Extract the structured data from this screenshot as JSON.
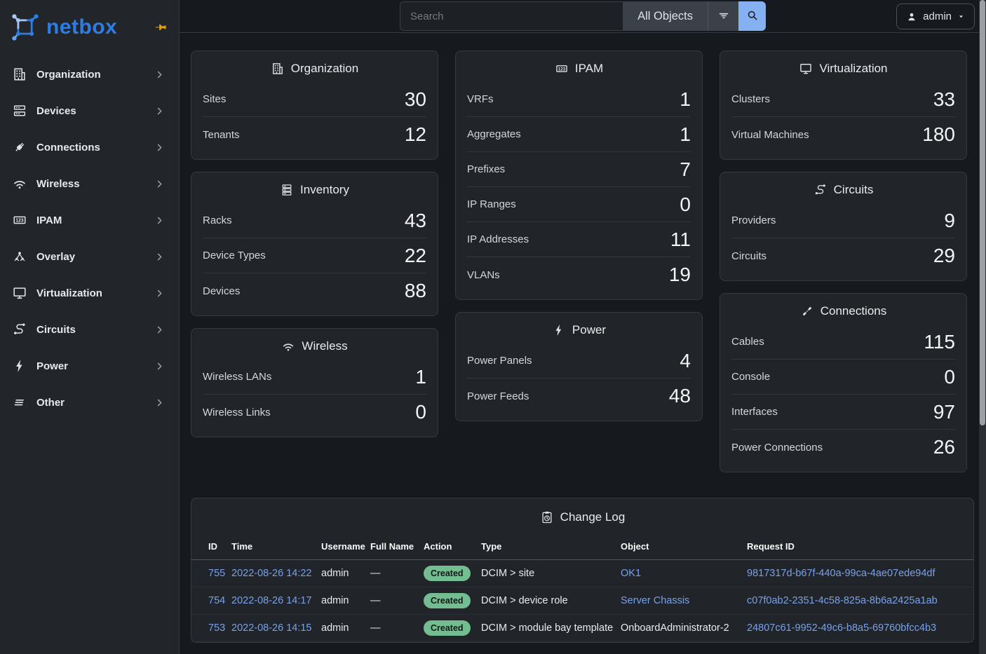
{
  "brand": {
    "name": "netbox"
  },
  "topbar": {
    "search_placeholder": "Search",
    "scope": "All Objects",
    "user_label": "admin"
  },
  "sidebar": {
    "items": [
      {
        "label": "Organization",
        "icon": "building"
      },
      {
        "label": "Devices",
        "icon": "server"
      },
      {
        "label": "Connections",
        "icon": "plug"
      },
      {
        "label": "Wireless",
        "icon": "wifi"
      },
      {
        "label": "IPAM",
        "icon": "counter"
      },
      {
        "label": "Overlay",
        "icon": "graph"
      },
      {
        "label": "Virtualization",
        "icon": "monitor"
      },
      {
        "label": "Circuits",
        "icon": "transit"
      },
      {
        "label": "Power",
        "icon": "bolt"
      },
      {
        "label": "Other",
        "icon": "lines"
      }
    ]
  },
  "stat_cards": [
    {
      "id": "organization",
      "title": "Organization",
      "icon": "building",
      "column": 1,
      "rows": [
        {
          "label": "Sites",
          "value": "30"
        },
        {
          "label": "Tenants",
          "value": "12"
        }
      ]
    },
    {
      "id": "inventory",
      "title": "Inventory",
      "icon": "racks",
      "column": 1,
      "rows": [
        {
          "label": "Racks",
          "value": "43"
        },
        {
          "label": "Device Types",
          "value": "22"
        },
        {
          "label": "Devices",
          "value": "88"
        }
      ]
    },
    {
      "id": "wireless",
      "title": "Wireless",
      "icon": "wifi",
      "column": 1,
      "rows": [
        {
          "label": "Wireless LANs",
          "value": "1"
        },
        {
          "label": "Wireless Links",
          "value": "0"
        }
      ]
    },
    {
      "id": "ipam",
      "title": "IPAM",
      "icon": "counter",
      "column": 2,
      "rows": [
        {
          "label": "VRFs",
          "value": "1"
        },
        {
          "label": "Aggregates",
          "value": "1"
        },
        {
          "label": "Prefixes",
          "value": "7"
        },
        {
          "label": "IP Ranges",
          "value": "0"
        },
        {
          "label": "IP Addresses",
          "value": "11"
        },
        {
          "label": "VLANs",
          "value": "19"
        }
      ]
    },
    {
      "id": "power",
      "title": "Power",
      "icon": "bolt",
      "column": 2,
      "rows": [
        {
          "label": "Power Panels",
          "value": "4"
        },
        {
          "label": "Power Feeds",
          "value": "48"
        }
      ]
    },
    {
      "id": "virtualization",
      "title": "Virtualization",
      "icon": "monitor",
      "column": 3,
      "rows": [
        {
          "label": "Clusters",
          "value": "33"
        },
        {
          "label": "Virtual Machines",
          "value": "180"
        }
      ]
    },
    {
      "id": "circuits",
      "title": "Circuits",
      "icon": "transit",
      "column": 3,
      "rows": [
        {
          "label": "Providers",
          "value": "9"
        },
        {
          "label": "Circuits",
          "value": "29"
        }
      ]
    },
    {
      "id": "connections",
      "title": "Connections",
      "icon": "cable",
      "column": 3,
      "rows": [
        {
          "label": "Cables",
          "value": "115"
        },
        {
          "label": "Console",
          "value": "0"
        },
        {
          "label": "Interfaces",
          "value": "97"
        },
        {
          "label": "Power Connections",
          "value": "26"
        }
      ]
    }
  ],
  "changelog": {
    "title": "Change Log",
    "icon": "clipboard-clock",
    "columns": [
      "ID",
      "Time",
      "Username",
      "Full Name",
      "Action",
      "Type",
      "Object",
      "Request ID"
    ],
    "rows": [
      {
        "id": "755",
        "time": "2022-08-26 14:22",
        "username": "admin",
        "full_name": "—",
        "action": "Created",
        "type": "DCIM > site",
        "object": "OK1",
        "object_link": true,
        "request_id": "9817317d-b67f-440a-99ca-4ae07ede94df"
      },
      {
        "id": "754",
        "time": "2022-08-26 14:17",
        "username": "admin",
        "full_name": "—",
        "action": "Created",
        "type": "DCIM > device role",
        "object": "Server Chassis",
        "object_link": true,
        "request_id": "c07f0ab2-2351-4c58-825a-8b6a2425a1ab"
      },
      {
        "id": "753",
        "time": "2022-08-26 14:15",
        "username": "admin",
        "full_name": "—",
        "action": "Created",
        "type": "DCIM > module bay template",
        "object": "OnboardAdministrator-2",
        "object_link": false,
        "request_id": "24807c61-9952-49c6-b8a5-69760bfcc4b3"
      }
    ]
  },
  "colors": {
    "accent_blue": "#2e7de4",
    "link_blue": "#79a1e9",
    "success_badge_bg": "#74bd92",
    "search_button_bg": "#85b0f1",
    "pin_gold": "#e3a008"
  }
}
